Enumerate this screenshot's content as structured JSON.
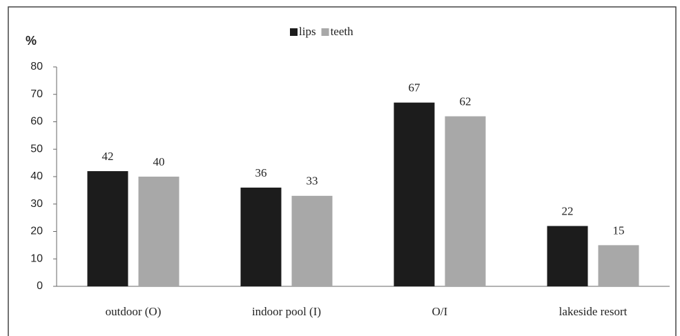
{
  "chart_data": {
    "type": "bar",
    "y_label": "%",
    "categories": [
      "outdoor (O)",
      "indoor pool (I)",
      "O/I",
      "lakeside resort"
    ],
    "series": [
      {
        "name": "lips",
        "color": "#1c1c1c",
        "values": [
          42,
          36,
          67,
          22
        ]
      },
      {
        "name": "teeth",
        "color": "#a8a8a8",
        "values": [
          40,
          33,
          62,
          15
        ]
      }
    ],
    "ylim": [
      0,
      80
    ],
    "yticks": [
      0,
      10,
      20,
      30,
      40,
      50,
      60,
      70,
      80
    ],
    "grid": false,
    "legend": "top"
  }
}
